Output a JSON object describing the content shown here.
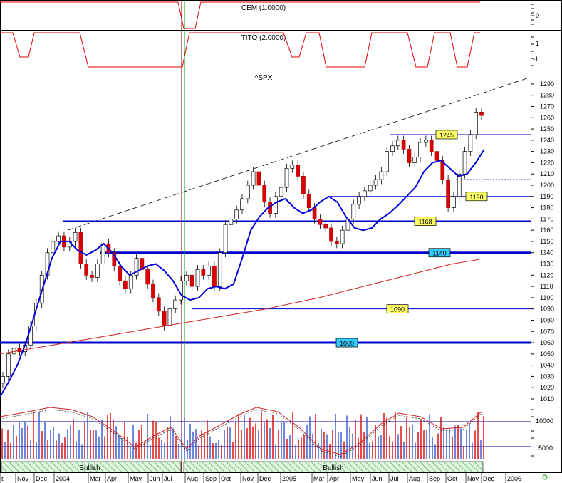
{
  "chart_data": {
    "type": "candlestick",
    "panels": {
      "cem": {
        "label": "CEM (1.0000)",
        "ticks": [
          0
        ]
      },
      "tito": {
        "label": "TITO (2.0000)",
        "ticks": [
          1,
          -1
        ]
      },
      "price": {
        "label": "^SPX",
        "ylim": [
          1010,
          1295
        ],
        "ticks": [
          1290,
          1280,
          1270,
          1260,
          1250,
          1240,
          1230,
          1220,
          1210,
          1200,
          1190,
          1180,
          1170,
          1160,
          1150,
          1140,
          1130,
          1120,
          1110,
          1100,
          1090,
          1080,
          1070,
          1060,
          1050,
          1040,
          1030,
          1020,
          1010
        ],
        "levels": [
          {
            "label": "1245",
            "value": 1245,
            "color": "#ffff66"
          },
          {
            "label": "1190",
            "value": 1190,
            "color": "#ffff66"
          },
          {
            "label": "1168",
            "value": 1168,
            "color": "#ffff66"
          },
          {
            "label": "1140",
            "value": 1140,
            "color": "#33ccff"
          },
          {
            "label": "1090",
            "value": 1090,
            "color": "#ffff66"
          },
          {
            "label": "1060",
            "value": 1060,
            "color": "#33ccff"
          }
        ],
        "closes": [
          1030,
          1050,
          1055,
          1052,
          1058,
          1075,
          1095,
          1120,
          1140,
          1150,
          1155,
          1145,
          1150,
          1158,
          1130,
          1120,
          1118,
          1130,
          1148,
          1140,
          1128,
          1115,
          1108,
          1120,
          1135,
          1125,
          1112,
          1100,
          1088,
          1075,
          1090,
          1098,
          1115,
          1120,
          1110,
          1125,
          1120,
          1128,
          1110,
          1140,
          1165,
          1170,
          1178,
          1188,
          1200,
          1212,
          1200,
          1185,
          1175,
          1190,
          1198,
          1215,
          1218,
          1208,
          1192,
          1180,
          1170,
          1165,
          1162,
          1150,
          1148,
          1160,
          1170,
          1183,
          1190,
          1195,
          1200,
          1205,
          1212,
          1230,
          1235,
          1240,
          1232,
          1220,
          1225,
          1238,
          1240,
          1230,
          1222,
          1205,
          1180,
          1190,
          1210,
          1230,
          1245,
          1265,
          1262
        ],
        "mid_ma": [
          1012,
          1025,
          1040,
          1060,
          1085,
          1110,
          1135,
          1150,
          1150,
          1142,
          1138,
          1142,
          1148,
          1140,
          1128,
          1120,
          1124,
          1128,
          1130,
          1124,
          1115,
          1102,
          1098,
          1100,
          1108,
          1110,
          1108,
          1112,
          1135,
          1160,
          1172,
          1180,
          1185,
          1188,
          1180,
          1175,
          1178,
          1185,
          1190,
          1185,
          1172,
          1162,
          1160,
          1162,
          1170,
          1175,
          1182,
          1190,
          1198,
          1212,
          1220,
          1222,
          1215,
          1208,
          1210,
          1220,
          1232
        ],
        "long_ma": [
          1050,
          1054,
          1058,
          1062,
          1066,
          1070,
          1074,
          1078,
          1082,
          1086,
          1090,
          1095,
          1100,
          1106,
          1112,
          1118,
          1124,
          1130,
          1134
        ],
        "trendline": [
          1160,
          1295
        ]
      },
      "volume": {
        "ticks": [
          10000,
          5000
        ],
        "bands": [
          {
            "label": "Bullish"
          },
          {
            "label": "Bullish"
          }
        ]
      }
    },
    "x_ticks": [
      "t",
      "Nov",
      "Dec",
      "2004",
      "Mar",
      "Apr",
      "May",
      "Jun",
      "Jul",
      "Aug",
      "Sep",
      "Oct",
      "Nov",
      "Dec",
      "2005",
      "Mar",
      "Apr",
      "May",
      "Jun",
      "Jul",
      "Aug",
      "Sep",
      "Oct",
      "Nov",
      "Dec",
      "2006"
    ],
    "colors": {
      "up": "#ffffff",
      "down": "#dd0000",
      "outline": "#000000",
      "mid_ma": "#0000dd",
      "long_ma": "#cc2222",
      "support": "#0000cc",
      "indicator": "#dd0000",
      "vertical_marker": "#00aa00"
    }
  }
}
